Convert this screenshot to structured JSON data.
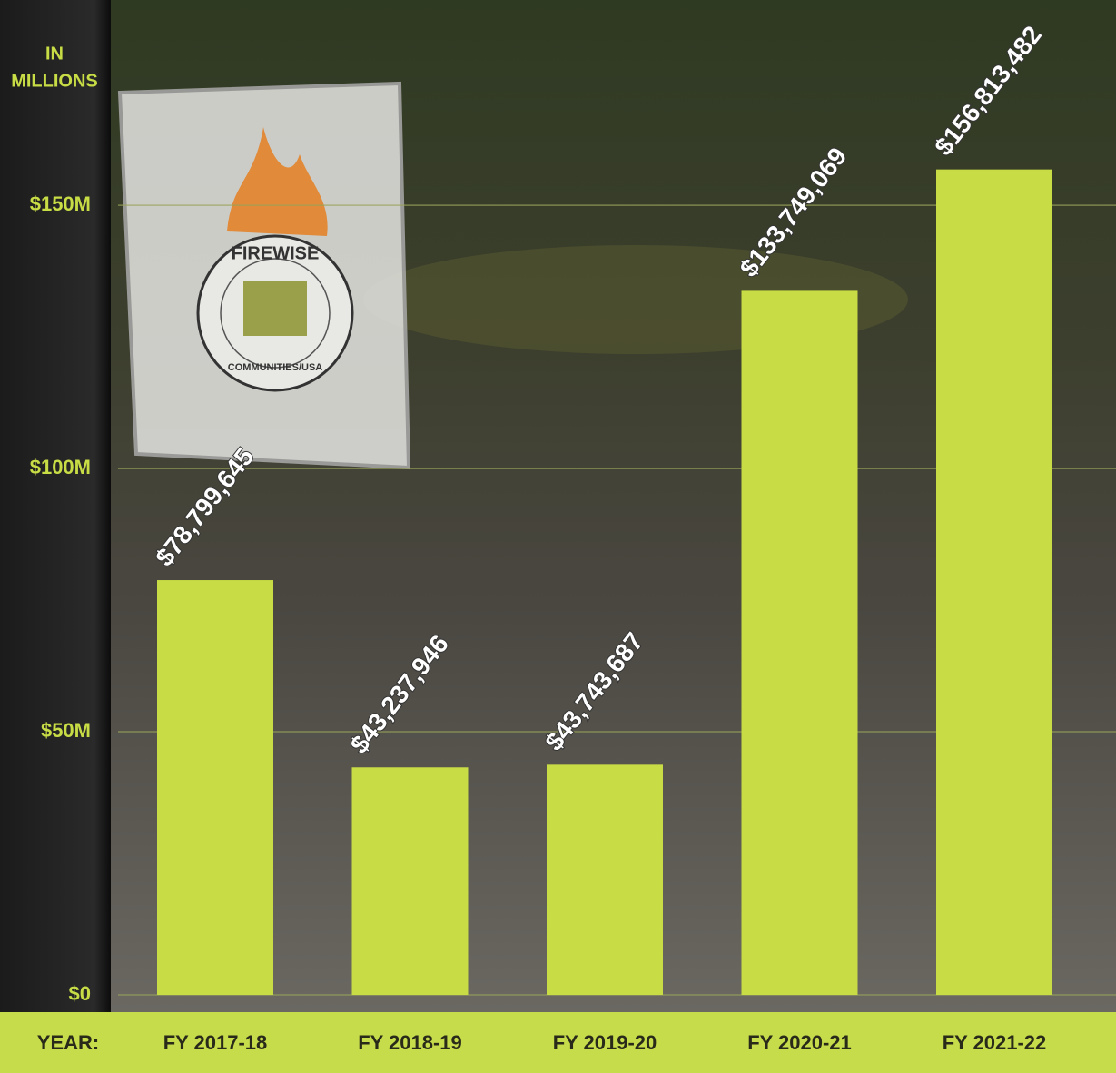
{
  "chart_data": {
    "type": "bar",
    "y_label": [
      "IN",
      "MILLIONS"
    ],
    "x_label": "YEAR:",
    "categories": [
      "FY 2017-18",
      "FY 2018-19",
      "FY 2019-20",
      "FY 2020-21",
      "FY 2021-22"
    ],
    "values": [
      78799645,
      43237946,
      43743687,
      133749069,
      156813482
    ],
    "value_labels": [
      "$78,799,645",
      "$43,237,946",
      "$43,743,687",
      "$133,749,069",
      "$156,813,482"
    ],
    "color": "#c8dc45",
    "ylim": [
      0,
      189000000
    ],
    "yticks": [
      {
        "value": 0,
        "label": "$0"
      },
      {
        "value": 50000000,
        "label": "$50M"
      },
      {
        "value": 100000000,
        "label": "$100M"
      },
      {
        "value": 150000000,
        "label": "$150M"
      }
    ],
    "grid": true
  },
  "sign": {
    "top": "FIREWISE",
    "bottom": "COMMUNITIES/USA"
  }
}
